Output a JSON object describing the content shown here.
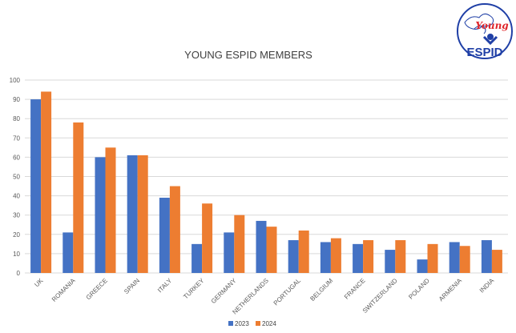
{
  "logo": {
    "line1": "Young",
    "line2": "ESPID",
    "color_primary": "#1f3fa6",
    "color_accent": "#e0262b"
  },
  "chart_data": {
    "type": "bar",
    "title": "YOUNG ESPID MEMBERS",
    "xlabel": "",
    "ylabel": "",
    "ylim": [
      0,
      100
    ],
    "yticks": [
      0,
      10,
      20,
      30,
      40,
      50,
      60,
      70,
      80,
      90,
      100
    ],
    "grid": true,
    "legend_position": "bottom",
    "categories": [
      "UK",
      "ROMANIA",
      "GREECE",
      "SPAIN",
      "ITALY",
      "TURKEY",
      "GERMANY",
      "NETHERLANDS",
      "PORTUGAL",
      "BELGIUM",
      "FRANCE",
      "SWITZERLAND",
      "POLAND",
      "ARMENIA",
      "INDIA"
    ],
    "series": [
      {
        "name": "2023",
        "color": "#4472c4",
        "values": [
          90,
          21,
          60,
          61,
          39,
          15,
          21,
          27,
          17,
          16,
          15,
          12,
          7,
          16,
          17
        ]
      },
      {
        "name": "2024",
        "color": "#ed7d31",
        "values": [
          94,
          78,
          65,
          61,
          45,
          36,
          30,
          24,
          22,
          18,
          17,
          17,
          15,
          14,
          12
        ]
      }
    ]
  }
}
